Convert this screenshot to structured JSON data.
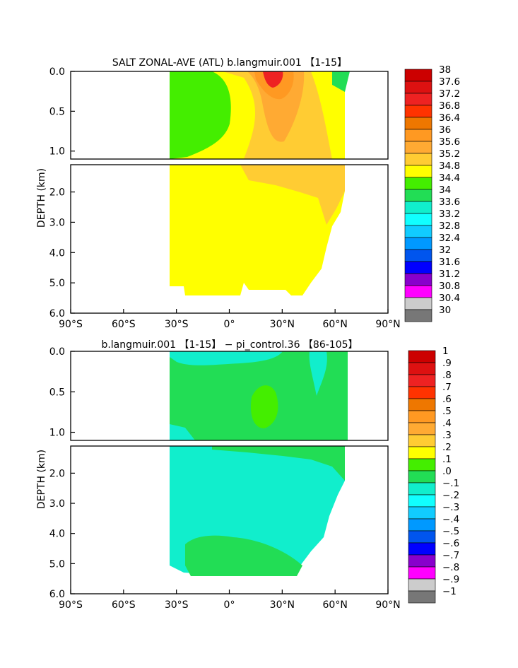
{
  "chart_data": [
    {
      "type": "heatmap",
      "title": "SALT ZONAL-AVE (ATL) b.langmuir.001 【1-15】",
      "ylabel": "DEPTH (km)",
      "xlabel": "",
      "xlim": [
        -90,
        90
      ],
      "x_ticks": [
        "90°S",
        "60°S",
        "30°S",
        "0°",
        "30°N",
        "60°N",
        "90°N"
      ],
      "x_tick_values": [
        -90,
        -60,
        -30,
        0,
        30,
        60,
        90
      ],
      "upper_panel": {
        "ylim": [
          0.0,
          1.1
        ],
        "y_ticks": [
          "0.0",
          "0.5",
          "1.0"
        ],
        "y_tick_values": [
          0.0,
          0.5,
          1.0
        ]
      },
      "lower_panel": {
        "ylim": [
          1.1,
          6.0
        ],
        "y_ticks": [
          "2.0",
          "3.0",
          "4.0",
          "5.0",
          "6.0"
        ],
        "y_tick_values": [
          2.0,
          3.0,
          4.0,
          5.0,
          6.0
        ]
      },
      "colorbar": {
        "labels": [
          "38",
          "37.6",
          "37.2",
          "36.8",
          "36.4",
          "36",
          "35.6",
          "35.2",
          "34.8",
          "34.4",
          "34",
          "33.6",
          "33.2",
          "32.8",
          "32.4",
          "32",
          "31.6",
          "31.2",
          "30.8",
          "30.4",
          "30"
        ],
        "colors": [
          "#cc0000",
          "#dd1111",
          "#ee2222",
          "#ff3300",
          "#ee7700",
          "#ff9922",
          "#ffaa33",
          "#ffcc33",
          "#ffff00",
          "#44ee00",
          "#22dd55",
          "#11eecc",
          "#11ffff",
          "#11ccff",
          "#0099ff",
          "#0055ee",
          "#0000ff",
          "#8800cc",
          "#ff00ff",
          "#cccccc",
          "#777777"
        ]
      }
    },
    {
      "type": "heatmap",
      "title": "b.langmuir.001 【1-15】 − pi_control.36 【86-105】",
      "ylabel": "DEPTH (km)",
      "xlabel": "",
      "xlim": [
        -90,
        90
      ],
      "x_ticks": [
        "90°S",
        "60°S",
        "30°S",
        "0°",
        "30°N",
        "60°N",
        "90°N"
      ],
      "x_tick_values": [
        -90,
        -60,
        -30,
        0,
        30,
        60,
        90
      ],
      "upper_panel": {
        "ylim": [
          0.0,
          1.1
        ],
        "y_ticks": [
          "0.0",
          "0.5",
          "1.0"
        ],
        "y_tick_values": [
          0.0,
          0.5,
          1.0
        ]
      },
      "lower_panel": {
        "ylim": [
          1.1,
          6.0
        ],
        "y_ticks": [
          "2.0",
          "3.0",
          "4.0",
          "5.0",
          "6.0"
        ],
        "y_tick_values": [
          2.0,
          3.0,
          4.0,
          5.0,
          6.0
        ]
      },
      "colorbar": {
        "labels": [
          "1",
          ".9",
          ".8",
          ".7",
          ".6",
          ".5",
          ".4",
          ".3",
          ".2",
          ".1",
          ".0",
          "−.1",
          "−.2",
          "−.3",
          "−.4",
          "−.5",
          "−.6",
          "−.7",
          "−.8",
          "−.9",
          "−1"
        ],
        "colors": [
          "#cc0000",
          "#dd1111",
          "#ee2222",
          "#ff3300",
          "#ee7700",
          "#ff9922",
          "#ffaa33",
          "#ffcc33",
          "#ffff00",
          "#44ee00",
          "#22dd55",
          "#11eecc",
          "#11ffff",
          "#11ccff",
          "#0099ff",
          "#0055ee",
          "#0000ff",
          "#8800cc",
          "#ff00ff",
          "#cccccc",
          "#777777"
        ]
      }
    }
  ]
}
